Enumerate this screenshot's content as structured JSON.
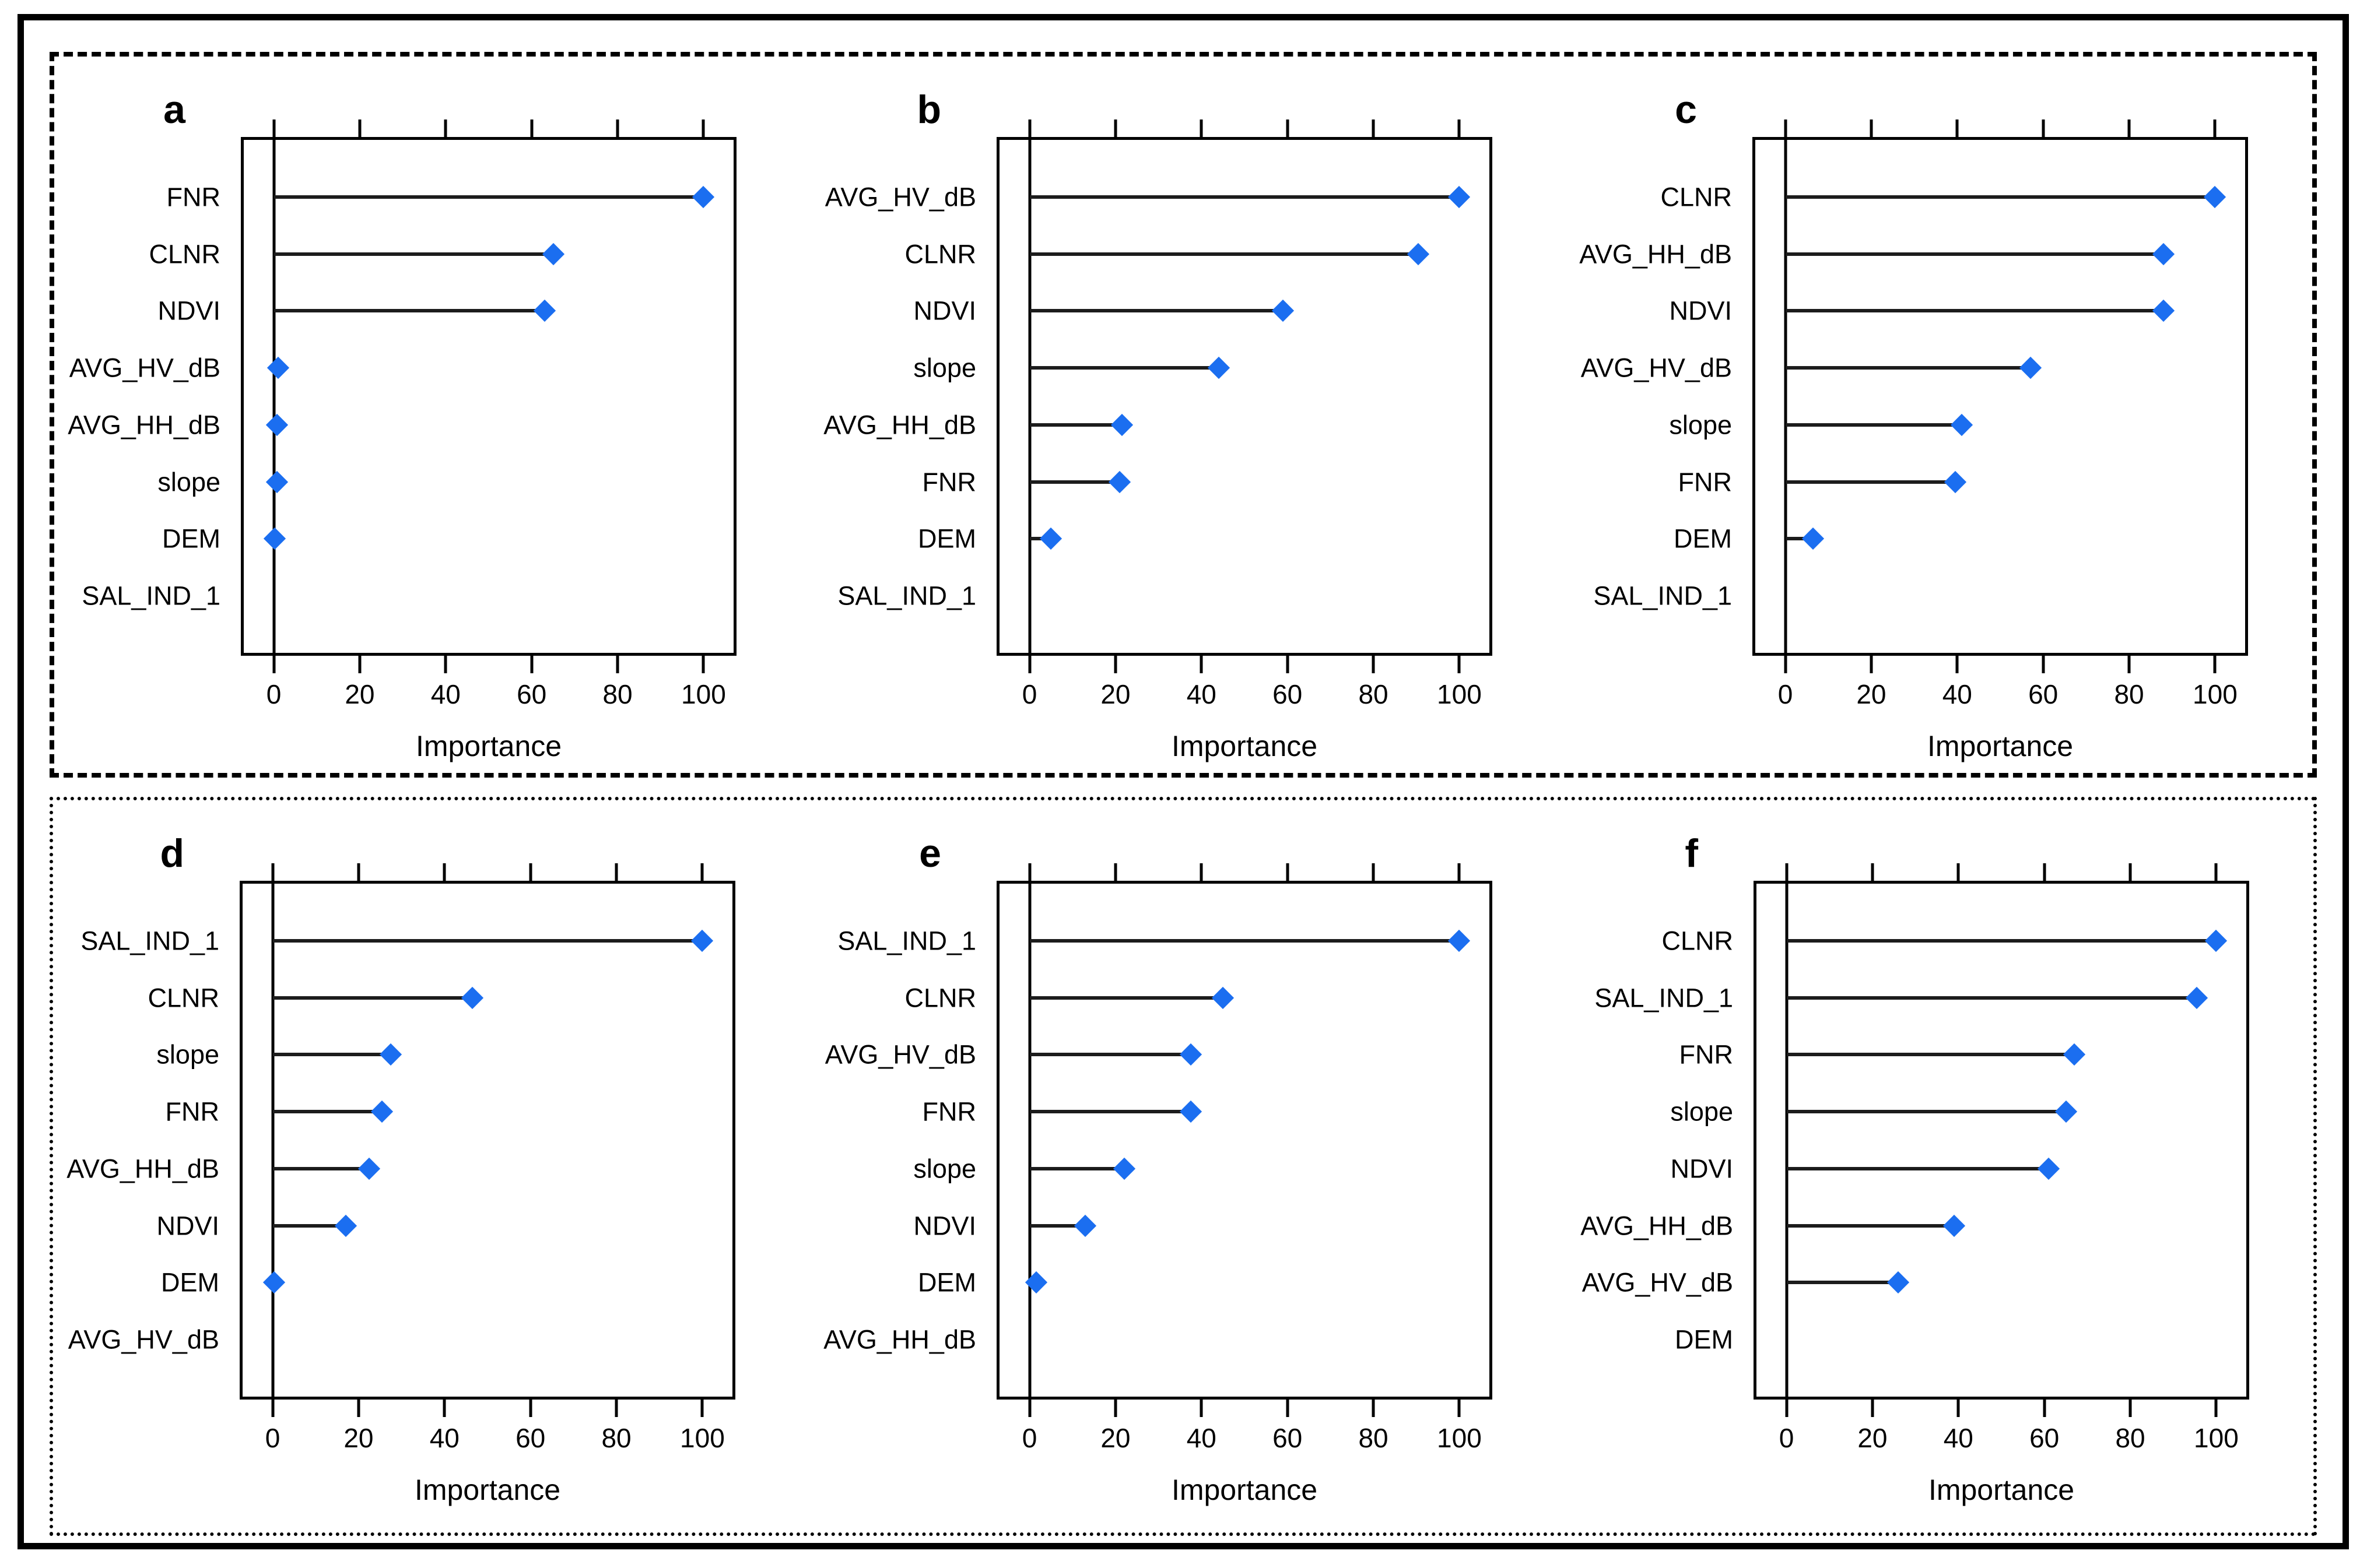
{
  "figure": {
    "dot_color": "#1B6EF0",
    "stem_color": "#1c1c1c",
    "frame_color": "#000000"
  },
  "chart_data": [
    {
      "type": "lollipop",
      "label": "a",
      "xlabel": "Importance",
      "x_ticks": [
        0,
        20,
        40,
        60,
        80,
        100
      ],
      "xlim": [
        -7,
        107
      ],
      "categories": [
        "FNR",
        "CLNR",
        "NDVI",
        "AVG_HV_dB",
        "AVG_HH_dB",
        "slope",
        "DEM",
        "SAL_IND_1"
      ],
      "values": [
        100,
        65,
        63,
        1,
        0.8,
        0.8,
        0.2,
        null
      ]
    },
    {
      "type": "lollipop",
      "label": "b",
      "xlabel": "Importance",
      "x_ticks": [
        0,
        20,
        40,
        60,
        80,
        100
      ],
      "xlim": [
        -7,
        107
      ],
      "categories": [
        "AVG_HV_dB",
        "CLNR",
        "NDVI",
        "slope",
        "AVG_HH_dB",
        "FNR",
        "DEM",
        "SAL_IND_1"
      ],
      "values": [
        100,
        90.5,
        59,
        44,
        21.5,
        21,
        5,
        null
      ]
    },
    {
      "type": "lollipop",
      "label": "c",
      "xlabel": "Importance",
      "x_ticks": [
        0,
        20,
        40,
        60,
        80,
        100
      ],
      "xlim": [
        -7,
        107
      ],
      "categories": [
        "CLNR",
        "AVG_HH_dB",
        "NDVI",
        "AVG_HV_dB",
        "slope",
        "FNR",
        "DEM",
        "SAL_IND_1"
      ],
      "values": [
        100,
        88,
        88,
        57,
        41,
        39.5,
        6.5,
        null
      ]
    },
    {
      "type": "lollipop",
      "label": "d",
      "xlabel": "Importance",
      "x_ticks": [
        0,
        20,
        40,
        60,
        80,
        100
      ],
      "xlim": [
        -7,
        107
      ],
      "categories": [
        "SAL_IND_1",
        "CLNR",
        "slope",
        "FNR",
        "AVG_HH_dB",
        "NDVI",
        "DEM",
        "AVG_HV_dB"
      ],
      "values": [
        100,
        46.5,
        27.5,
        25.5,
        22.5,
        17,
        0.3,
        null
      ]
    },
    {
      "type": "lollipop",
      "label": "e",
      "xlabel": "Importance",
      "x_ticks": [
        0,
        20,
        40,
        60,
        80,
        100
      ],
      "xlim": [
        -7,
        107
      ],
      "categories": [
        "SAL_IND_1",
        "CLNR",
        "AVG_HV_dB",
        "FNR",
        "slope",
        "NDVI",
        "DEM",
        "AVG_HH_dB"
      ],
      "values": [
        100,
        45,
        37.5,
        37.5,
        22,
        13,
        1.5,
        null
      ]
    },
    {
      "type": "lollipop",
      "label": "f",
      "xlabel": "Importance",
      "x_ticks": [
        0,
        20,
        40,
        60,
        80,
        100
      ],
      "xlim": [
        -7,
        107
      ],
      "categories": [
        "CLNR",
        "SAL_IND_1",
        "FNR",
        "slope",
        "NDVI",
        "AVG_HH_dB",
        "AVG_HV_dB",
        "DEM"
      ],
      "values": [
        100,
        95.5,
        67,
        65,
        61,
        39,
        26,
        null
      ]
    }
  ],
  "groups": {
    "top_row_panels": [
      "a",
      "b",
      "c"
    ],
    "bottom_row_panels": [
      "d",
      "e",
      "f"
    ]
  }
}
